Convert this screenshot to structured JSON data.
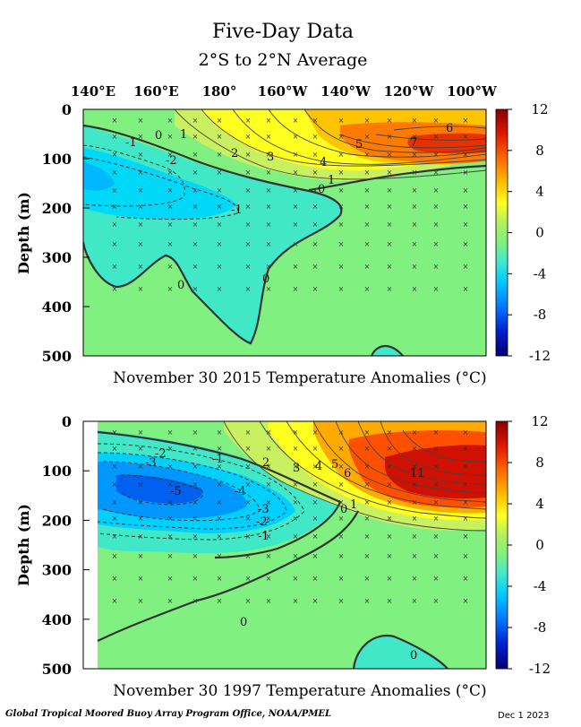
{
  "title": "Five-Day Data",
  "subtitle": "2°S to 2°N Average",
  "footer": {
    "credit": "Global Tropical Moored Buoy Array Program Office, NOAA/PMEL",
    "date": "Dec  1 2023"
  },
  "colors": {
    "neg12": "#0000a0",
    "neg8": "#0050ff",
    "neg4": "#00c8ff",
    "neg2": "#40e8d0",
    "zero": "#80f080",
    "pos2": "#c8f060",
    "pos4": "#ffff20",
    "pos6": "#ffc800",
    "pos8": "#ff7800",
    "pos10": "#e02000",
    "pos12": "#900000"
  },
  "chart_data": [
    {
      "type": "heatmap",
      "caption": "November 30 2015 Temperature Anomalies (°C)",
      "x_ticks": [
        "140°E",
        "160°E",
        "180°",
        "160°W",
        "140°W",
        "120°W",
        "100°W"
      ],
      "y_ticks": [
        "0",
        "100",
        "200",
        "300",
        "400",
        "500"
      ],
      "ylabel": "Depth (m)",
      "ylim": [
        500,
        0
      ],
      "colorbar_ticks": [
        "12",
        "8",
        "4",
        "0",
        "-4",
        "-8",
        "-12"
      ],
      "colorbar_range": [
        -12,
        12
      ],
      "contour_labels": [
        "-1",
        "-2",
        "-1",
        "0",
        "1",
        "2",
        "3",
        "4",
        "5",
        "7",
        "6",
        "1",
        "0",
        "0",
        "0"
      ]
    },
    {
      "type": "heatmap",
      "caption": "November 30 1997 Temperature Anomalies (°C)",
      "x_ticks": [],
      "y_ticks": [
        "0",
        "100",
        "200",
        "300",
        "400",
        "500"
      ],
      "ylabel": "Depth (m)",
      "ylim": [
        500,
        0
      ],
      "colorbar_ticks": [
        "12",
        "8",
        "4",
        "0",
        "-4",
        "-8",
        "-12"
      ],
      "colorbar_range": [
        -12,
        12
      ],
      "contour_labels": [
        "-2",
        "-3",
        "-1",
        "-5",
        "-4",
        "-3",
        "-2",
        "-1",
        "2",
        "3",
        "4",
        "5",
        "6",
        "11",
        "0",
        "1",
        "0",
        "0"
      ]
    }
  ]
}
